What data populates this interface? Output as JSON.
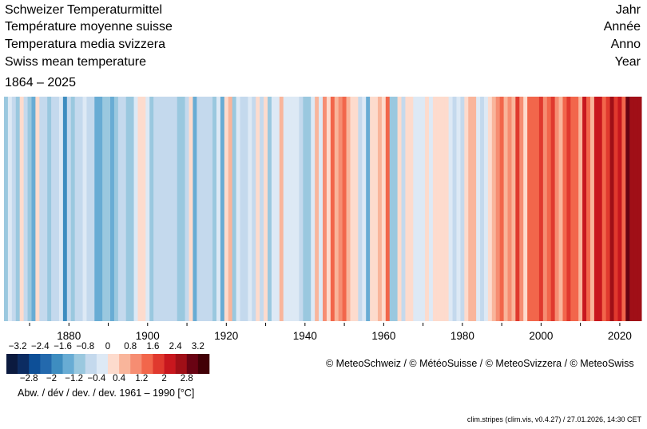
{
  "titles": {
    "de": "Schweizer Temperaturmittel",
    "fr": "Température moyenne suisse",
    "it": "Temperatura media svizzera",
    "en": "Swiss mean temperature",
    "period": "1864 – 2025"
  },
  "aggregation": {
    "de": "Jahr",
    "fr": "Année",
    "it": "Anno",
    "en": "Year"
  },
  "copyright": "© MeteoSchweiz / © MétéoSuisse / © MeteoSvizzera / © MeteoSwiss",
  "footer": "clim.stripes (clim.vis, v0.4.27) / 27.01.2026, 14:30 CET",
  "chart_data": {
    "type": "heatmap",
    "subtype": "warming-stripes",
    "x_start": 1864,
    "x_end": 2025,
    "x_tick_labels": [
      "1880",
      "1900",
      "1920",
      "1940",
      "1960",
      "1980",
      "2000",
      "2020"
    ],
    "values": [
      -1.0,
      -0.4,
      -0.7,
      -0.9,
      0.1,
      -0.5,
      -1.0,
      -1.5,
      0.1,
      -0.6,
      -0.8,
      -0.9,
      -0.6,
      -0.5,
      -0.3,
      -1.8,
      -0.6,
      -1.0,
      -0.6,
      -0.8,
      -0.4,
      -0.8,
      -0.6,
      -1.5,
      -1.4,
      -1.1,
      -1.2,
      -1.3,
      -1.0,
      -0.7,
      -0.8,
      -1.0,
      -0.9,
      -0.4,
      0.1,
      0.1,
      -0.4,
      -1.0,
      -0.7,
      -0.6,
      -0.5,
      -0.8,
      -0.5,
      -0.6,
      -1.0,
      -1.2,
      -0.8,
      0.1,
      -1.3,
      -0.8,
      -0.7,
      -0.6,
      -0.7,
      -1.0,
      -0.2,
      -1.3,
      0.2,
      0.5,
      -1.1,
      -0.3,
      -0.8,
      -0.6,
      -0.2,
      -0.6,
      0.2,
      -0.6,
      0.3,
      -0.9,
      -0.1,
      -0.4,
      0.6,
      -0.2,
      -0.2,
      -0.1,
      -0.1,
      -0.5,
      -0.9,
      -0.9,
      -0.1,
      0.4,
      -0.2,
      0.9,
      0.1,
      1.3,
      0.5,
      1.1,
      1.2,
      0.4,
      0.0,
      0.3,
      -0.6,
      -0.3,
      -1.6,
      0.2,
      0.1,
      0.6,
      0.3,
      1.2,
      -0.9,
      -1.0,
      0.2,
      -0.8,
      0.3,
      0.3,
      -0.1,
      -0.4,
      -0.4,
      0.2,
      -0.2,
      0.1,
      0.2,
      0.1,
      0.2,
      -0.2,
      -0.7,
      -0.1,
      -0.8,
      0.0,
      0.6,
      0.4,
      -0.4,
      -0.8,
      -0.3,
      0.1,
      0.6,
      1.0,
      1.2,
      0.6,
      1.0,
      0.6,
      1.8,
      0.9,
      0.3,
      1.2,
      1.3,
      1.2,
      1.6,
      1.1,
      1.5,
      1.9,
      0.9,
      0.7,
      1.4,
      1.6,
      1.2,
      1.5,
      0.4,
      2.2,
      1.4,
      0.7,
      2.2,
      2.2,
      1.5,
      1.6,
      2.6,
      1.9,
      2.3,
      1.4,
      2.9,
      2.6,
      2.4,
      2.4
    ],
    "colorbar": {
      "breaks": [
        -3.2,
        -2.8,
        -2.4,
        -2,
        -1.6,
        -1.2,
        -0.8,
        -0.4,
        0,
        0.4,
        0.8,
        1.2,
        1.6,
        2,
        2.4,
        2.8,
        3.2
      ],
      "top_labels": [
        "−3.2",
        "−2.4",
        "−1.6",
        "−0.8",
        "0",
        "0.8",
        "1.6",
        "2.4",
        "3.2"
      ],
      "bottom_labels": [
        "−2.8",
        "−2",
        "−1.2",
        "−0.4",
        "0.4",
        "1.2",
        "2",
        "2.8"
      ],
      "colors": [
        "#0b1a3f",
        "#0c2c62",
        "#0d4f97",
        "#2369ad",
        "#3e8dc0",
        "#68acd4",
        "#9ac8df",
        "#c4d9ed",
        "#dde9f5",
        "#fddbcd",
        "#f9b59b",
        "#f68d72",
        "#f2664b",
        "#e0392e",
        "#c8171e",
        "#a00f17",
        "#690313",
        "#420006"
      ],
      "label": "Abw. / dév / dev. / dev. 1961 – 1990 [°C]"
    }
  }
}
